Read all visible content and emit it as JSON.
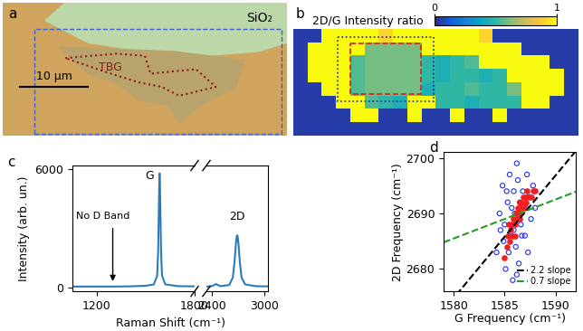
{
  "chart_data": [
    {
      "type": "image",
      "panel": "a",
      "labels": [
        "SiO₂",
        "TBG"
      ],
      "scale_bar": "10 µm"
    },
    {
      "type": "heatmap",
      "panel": "b",
      "title": "2D/G Intensity ratio",
      "cells": [
        [
          0.05,
          0.05,
          1,
          1,
          1,
          1,
          0.9,
          1,
          1,
          1,
          1,
          1,
          1,
          0.9,
          0.05,
          0.05,
          0.05,
          0.05,
          0.05,
          0.05
        ],
        [
          0.05,
          1,
          1,
          1,
          1,
          0.6,
          0.6,
          0.6,
          0.6,
          1,
          1,
          1,
          1,
          1,
          1,
          1,
          0.05,
          0.05,
          0.05,
          0.05
        ],
        [
          0.05,
          1,
          1,
          1,
          0.55,
          0.6,
          0.6,
          0.6,
          0.6,
          0.5,
          0.45,
          0.5,
          0.55,
          1,
          1,
          1,
          1,
          1,
          0.05,
          0.05
        ],
        [
          0.05,
          1,
          1,
          1,
          0.55,
          0.6,
          0.6,
          0.6,
          0.6,
          0.5,
          0.45,
          0.5,
          0.5,
          0.45,
          0.5,
          1,
          1,
          1,
          1,
          0.05
        ],
        [
          0.05,
          0.05,
          1,
          1,
          0.55,
          0.6,
          0.6,
          0.6,
          0.6,
          0.45,
          0.5,
          0.5,
          0.55,
          0.5,
          0.5,
          0.6,
          1,
          1,
          1,
          0.05
        ],
        [
          0.05,
          0.05,
          0.05,
          1,
          1,
          0.55,
          0.5,
          0.45,
          1,
          1,
          0.5,
          0.5,
          0.45,
          0.5,
          0.5,
          0.5,
          1,
          1,
          0.05,
          0.05
        ],
        [
          0.05,
          0.05,
          0.05,
          0.05,
          1,
          1,
          0.05,
          0.05,
          1,
          0.05,
          0.05,
          1,
          0.05,
          0.05,
          1,
          0.05,
          0.05,
          0.05,
          0.05,
          0.05
        ],
        [
          0.05,
          0.05,
          0.05,
          0.05,
          0.05,
          0.05,
          0.05,
          0.05,
          0.05,
          0.05,
          0.05,
          0.05,
          0.05,
          0.05,
          0.05,
          0.05,
          0.05,
          0.05,
          0.05,
          0.05
        ]
      ],
      "colorbar_range": [
        0,
        1
      ],
      "colorbar_ticks": [
        0,
        1
      ]
    },
    {
      "type": "line",
      "panel": "c",
      "xlabel": "Raman Shift (cm⁻¹)",
      "ylabel": "Intensity (arb. un.)",
      "annotations": [
        "G",
        "2D",
        "No D Band"
      ],
      "color": "#2b7bb9",
      "x": [
        1050,
        1200,
        1300,
        1400,
        1500,
        1550,
        1570,
        1576,
        1580,
        1583,
        1585,
        1587,
        1590,
        1594,
        1600,
        1620,
        1700,
        1800,
        2340,
        2400,
        2430,
        2450,
        2470,
        2500,
        2600,
        2640,
        2660,
        2675,
        2685,
        2690,
        2695,
        2705,
        2720,
        2740,
        2780,
        2900,
        3040
      ],
      "values": [
        40,
        40,
        40,
        50,
        80,
        150,
        600,
        1800,
        3800,
        5300,
        5800,
        5300,
        3800,
        1800,
        600,
        150,
        60,
        50,
        40,
        60,
        120,
        170,
        120,
        60,
        120,
        500,
        1300,
        2200,
        2600,
        2650,
        2600,
        2200,
        1300,
        500,
        150,
        60,
        50
      ],
      "xlim": [
        [
          1050,
          1800
        ],
        [
          2340,
          3040
        ]
      ],
      "xticks": [
        [
          1200,
          1800
        ],
        [
          2400,
          3000
        ]
      ],
      "ylim": [
        -200,
        6200
      ],
      "yticks": [
        0,
        6000
      ]
    },
    {
      "type": "scatter",
      "panel": "d",
      "xlabel": "G Frequency (cm⁻¹)",
      "ylabel": "2D Frequency (cm⁻¹)",
      "series": [
        {
          "color": "#1f2df5",
          "marker": "open_circle",
          "x": [
            1584.2,
            1584.5,
            1584.8,
            1585.0,
            1585.1,
            1585.3,
            1585.5,
            1585.6,
            1585.8,
            1585.9,
            1586.0,
            1586.1,
            1586.3,
            1586.4,
            1586.5,
            1586.6,
            1586.8,
            1587.0,
            1587.1,
            1587.3,
            1587.4,
            1587.6,
            1587.8,
            1588.0,
            1584.9,
            1585.4,
            1586.2,
            1585.7,
            1586.2,
            1585.2,
            1584.6,
            1586.7,
            1587.2,
            1585.9,
            1586.4
          ],
          "values": [
            2683,
            2690,
            2695,
            2688,
            2680,
            2692,
            2697,
            2686,
            2678,
            2694,
            2690,
            2684,
            2696,
            2681,
            2692,
            2688,
            2694,
            2686,
            2691,
            2683,
            2693,
            2689,
            2695,
            2691,
            2685,
            2683,
            2699,
            2691,
            2679,
            2694,
            2687,
            2686,
            2697,
            2687,
            2690
          ]
        },
        {
          "color": "#f01e1e",
          "marker": "circle",
          "x": [
            1585.0,
            1585.2,
            1585.3,
            1585.5,
            1585.6,
            1585.7,
            1585.8,
            1585.9,
            1586.0,
            1586.1,
            1586.2,
            1586.3,
            1586.4,
            1586.5,
            1586.6,
            1586.7,
            1586.8,
            1586.9,
            1587.0,
            1587.1,
            1587.2,
            1587.4,
            1587.6,
            1587.8,
            1588.0,
            1585.4,
            1586.0,
            1586.5
          ],
          "values": [
            2682,
            2684,
            2686,
            2685,
            2687,
            2688,
            2686,
            2689,
            2688,
            2690,
            2689,
            2691,
            2690,
            2692,
            2691,
            2692,
            2693,
            2691,
            2693,
            2692,
            2694,
            2693,
            2693,
            2694,
            2694,
            2688,
            2686,
            2689
          ]
        }
      ],
      "lines": [
        {
          "name": "2.2 slope",
          "slope": 2.2,
          "x0": 1585,
          "y0": 2685.8,
          "color": "#000000",
          "line_style": "dashed"
        },
        {
          "name": "0.7 slope",
          "slope": 0.7,
          "x0": 1585,
          "y0": 2689,
          "color": "#1f9e1f",
          "line_style": "dashed"
        }
      ],
      "legend": "lower right",
      "xlim": [
        1579,
        1592
      ],
      "xticks": [
        1580,
        1585,
        1590
      ],
      "ylim": [
        2676,
        2701
      ],
      "yticks": [
        2680,
        2690,
        2700
      ]
    }
  ]
}
